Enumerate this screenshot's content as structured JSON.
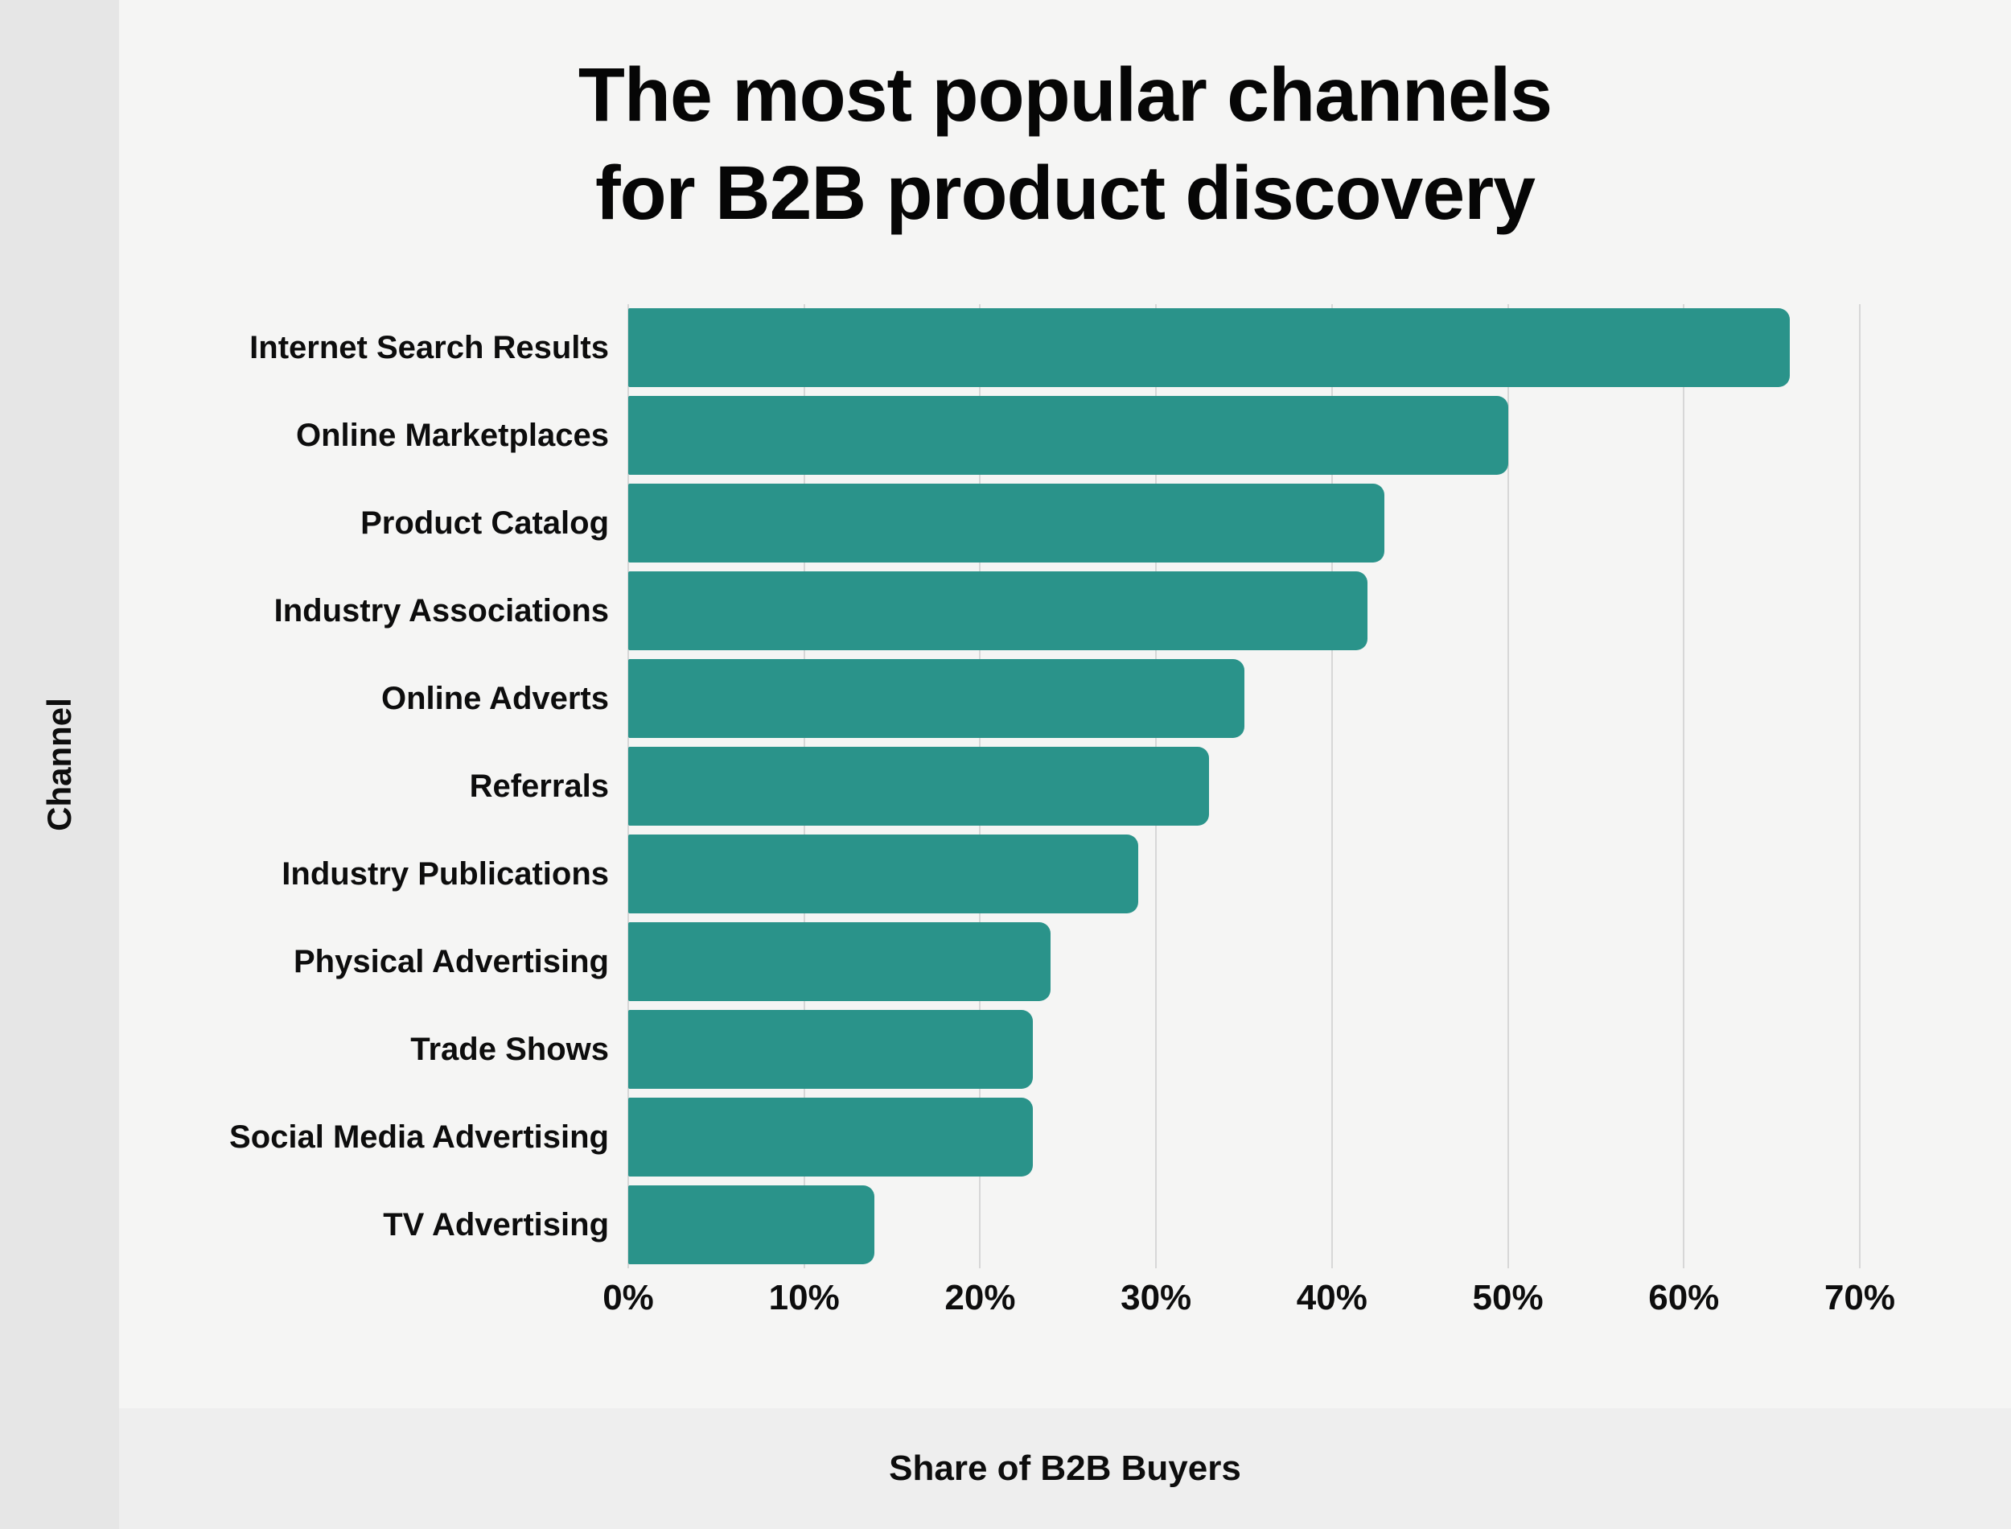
{
  "title": {
    "line1": "The most popular channels",
    "line2": "for B2B product discovery"
  },
  "y_axis_label": "Channel",
  "x_axis_label": "Share of B2B Buyers",
  "chart_data": {
    "type": "bar",
    "orientation": "horizontal",
    "title": "The most popular channels for B2B product discovery",
    "xlabel": "Share of B2B Buyers",
    "ylabel": "Channel",
    "categories": [
      "Internet Search Results",
      "Online Marketplaces",
      "Product Catalog",
      "Industry Associations",
      "Online Adverts",
      "Referrals",
      "Industry Publications",
      "Physical Advertising",
      "Trade Shows",
      "Social Media Advertising",
      "TV Advertising"
    ],
    "values": [
      66,
      50,
      43,
      42,
      35,
      33,
      29,
      24,
      23,
      23,
      14
    ],
    "unit": "%",
    "xlim": [
      0,
      70
    ],
    "x_ticks": [
      "0%",
      "10%",
      "20%",
      "30%",
      "40%",
      "50%",
      "60%",
      "70%"
    ],
    "grid": "vertical",
    "legend": "none"
  },
  "colors": {
    "background": "#f5f5f4",
    "left_strip": "#e6e6e6",
    "bottom_strip": "#eeeeee",
    "bar": "#2a938a",
    "gridline": "#d7d7d7",
    "text": "#0d0d0d"
  }
}
